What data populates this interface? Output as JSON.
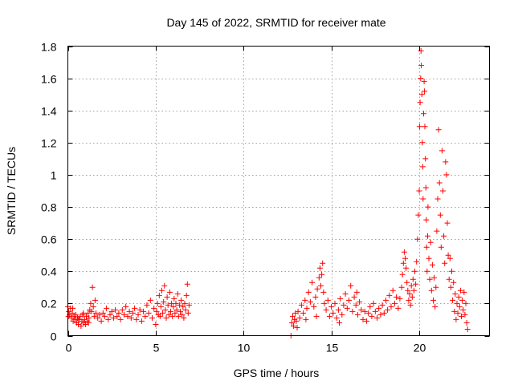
{
  "chart_data": {
    "type": "scatter",
    "title": "Day 145 of 2022, SRMTID for receiver mate",
    "xlabel": "GPS time / hours",
    "ylabel": "SRMTID / TECUs",
    "xlim": [
      0,
      24
    ],
    "ylim": [
      0,
      1.8
    ],
    "xticks": [
      0,
      5,
      10,
      15,
      20
    ],
    "xtick_labels": [
      "0",
      "5",
      "10",
      "15",
      "20"
    ],
    "yticks": [
      0,
      0.2,
      0.4,
      0.6,
      0.8,
      1,
      1.2,
      1.4,
      1.6,
      1.8
    ],
    "ytick_labels": [
      "0",
      "0.2",
      "0.4",
      "0.6",
      "0.8",
      "1",
      "1.2",
      "1.4",
      "1.6",
      "1.8"
    ],
    "grid": true,
    "marker": "+",
    "color": "#ff0000",
    "series": [
      {
        "name": "SRMTID",
        "points": [
          [
            0.0,
            0.18
          ],
          [
            0.05,
            0.15
          ],
          [
            0.1,
            0.13
          ],
          [
            0.15,
            0.17
          ],
          [
            0.2,
            0.11
          ],
          [
            0.25,
            0.14
          ],
          [
            0.3,
            0.09
          ],
          [
            0.35,
            0.12
          ],
          [
            0.4,
            0.1
          ],
          [
            0.45,
            0.13
          ],
          [
            0.5,
            0.08
          ],
          [
            0.55,
            0.11
          ],
          [
            0.6,
            0.07
          ],
          [
            0.65,
            0.1
          ],
          [
            0.7,
            0.12
          ],
          [
            0.75,
            0.06
          ],
          [
            0.8,
            0.09
          ],
          [
            0.85,
            0.13
          ],
          [
            0.9,
            0.08
          ],
          [
            0.95,
            0.1
          ],
          [
            1.0,
            0.07
          ],
          [
            1.05,
            0.12
          ],
          [
            1.1,
            0.09
          ],
          [
            1.15,
            0.14
          ],
          [
            1.2,
            0.11
          ],
          [
            1.25,
            0.16
          ],
          [
            1.3,
            0.2
          ],
          [
            1.35,
            0.15
          ],
          [
            1.4,
            0.3
          ],
          [
            1.45,
            0.18
          ],
          [
            1.5,
            0.12
          ],
          [
            1.55,
            0.22
          ],
          [
            1.6,
            0.14
          ],
          [
            1.7,
            0.11
          ],
          [
            1.8,
            0.13
          ],
          [
            1.9,
            0.09
          ],
          [
            2.0,
            0.14
          ],
          [
            2.1,
            0.12
          ],
          [
            2.2,
            0.17
          ],
          [
            2.3,
            0.1
          ],
          [
            2.4,
            0.13
          ],
          [
            2.5,
            0.15
          ],
          [
            2.6,
            0.11
          ],
          [
            2.7,
            0.16
          ],
          [
            2.8,
            0.12
          ],
          [
            2.9,
            0.14
          ],
          [
            3.0,
            0.1
          ],
          [
            3.1,
            0.16
          ],
          [
            3.2,
            0.13
          ],
          [
            3.3,
            0.18
          ],
          [
            3.4,
            0.12
          ],
          [
            3.5,
            0.15
          ],
          [
            3.6,
            0.11
          ],
          [
            3.7,
            0.14
          ],
          [
            3.8,
            0.17
          ],
          [
            3.9,
            0.1
          ],
          [
            4.0,
            0.13
          ],
          [
            4.1,
            0.16
          ],
          [
            4.2,
            0.09
          ],
          [
            4.3,
            0.15
          ],
          [
            4.4,
            0.12
          ],
          [
            4.5,
            0.19
          ],
          [
            4.6,
            0.14
          ],
          [
            4.7,
            0.22
          ],
          [
            4.8,
            0.11
          ],
          [
            4.9,
            0.17
          ],
          [
            5.0,
            0.07
          ],
          [
            5.05,
            0.15
          ],
          [
            5.1,
            0.2
          ],
          [
            5.15,
            0.13
          ],
          [
            5.2,
            0.25
          ],
          [
            5.25,
            0.12
          ],
          [
            5.3,
            0.18
          ],
          [
            5.35,
            0.28
          ],
          [
            5.4,
            0.14
          ],
          [
            5.45,
            0.21
          ],
          [
            5.5,
            0.31
          ],
          [
            5.55,
            0.16
          ],
          [
            5.6,
            0.11
          ],
          [
            5.65,
            0.24
          ],
          [
            5.7,
            0.19
          ],
          [
            5.75,
            0.13
          ],
          [
            5.8,
            0.27
          ],
          [
            5.85,
            0.15
          ],
          [
            5.9,
            0.2
          ],
          [
            5.95,
            0.12
          ],
          [
            6.0,
            0.18
          ],
          [
            6.05,
            0.23
          ],
          [
            6.1,
            0.14
          ],
          [
            6.15,
            0.2
          ],
          [
            6.2,
            0.16
          ],
          [
            6.25,
            0.26
          ],
          [
            6.3,
            0.12
          ],
          [
            6.35,
            0.19
          ],
          [
            6.4,
            0.15
          ],
          [
            6.45,
            0.22
          ],
          [
            6.5,
            0.13
          ],
          [
            6.55,
            0.18
          ],
          [
            6.6,
            0.11
          ],
          [
            6.65,
            0.2
          ],
          [
            6.7,
            0.16
          ],
          [
            6.75,
            0.25
          ],
          [
            6.8,
            0.32
          ],
          [
            6.85,
            0.14
          ],
          [
            6.9,
            0.19
          ],
          [
            0.03,
            0.12
          ],
          [
            0.28,
            0.17
          ],
          [
            0.58,
            0.1
          ],
          [
            0.88,
            0.14
          ],
          [
            1.18,
            0.08
          ],
          [
            12.7,
            0.0
          ],
          [
            12.75,
            0.08
          ],
          [
            12.8,
            0.12
          ],
          [
            12.85,
            0.06
          ],
          [
            12.9,
            0.1
          ],
          [
            12.95,
            0.14
          ],
          [
            13.0,
            0.09
          ],
          [
            13.1,
            0.15
          ],
          [
            13.2,
            0.11
          ],
          [
            13.3,
            0.19
          ],
          [
            13.4,
            0.14
          ],
          [
            13.5,
            0.22
          ],
          [
            13.6,
            0.17
          ],
          [
            13.7,
            0.27
          ],
          [
            13.8,
            0.21
          ],
          [
            13.9,
            0.33
          ],
          [
            14.0,
            0.18
          ],
          [
            14.1,
            0.24
          ],
          [
            14.2,
            0.29
          ],
          [
            14.3,
            0.36
          ],
          [
            14.35,
            0.42
          ],
          [
            14.4,
            0.31
          ],
          [
            14.45,
            0.38
          ],
          [
            14.5,
            0.45
          ],
          [
            14.55,
            0.27
          ],
          [
            14.6,
            0.2
          ],
          [
            14.7,
            0.16
          ],
          [
            14.8,
            0.22
          ],
          [
            14.9,
            0.12
          ],
          [
            15.0,
            0.18
          ],
          [
            15.1,
            0.14
          ],
          [
            15.2,
            0.2
          ],
          [
            15.3,
            0.11
          ],
          [
            15.4,
            0.16
          ],
          [
            15.5,
            0.23
          ],
          [
            15.6,
            0.13
          ],
          [
            15.7,
            0.19
          ],
          [
            15.8,
            0.26
          ],
          [
            15.9,
            0.17
          ],
          [
            16.0,
            0.22
          ],
          [
            16.1,
            0.31
          ],
          [
            16.2,
            0.15
          ],
          [
            16.3,
            0.24
          ],
          [
            16.4,
            0.19
          ],
          [
            16.5,
            0.13
          ],
          [
            16.6,
            0.21
          ],
          [
            16.7,
            0.16
          ],
          [
            16.8,
            0.1
          ],
          [
            16.9,
            0.15
          ],
          [
            17.0,
            0.09
          ],
          [
            17.1,
            0.14
          ],
          [
            17.2,
            0.18
          ],
          [
            17.3,
            0.12
          ],
          [
            17.4,
            0.2
          ],
          [
            17.5,
            0.15
          ],
          [
            17.6,
            0.11
          ],
          [
            17.7,
            0.17
          ],
          [
            17.8,
            0.13
          ],
          [
            17.9,
            0.19
          ],
          [
            18.0,
            0.14
          ],
          [
            18.1,
            0.22
          ],
          [
            18.2,
            0.16
          ],
          [
            18.3,
            0.25
          ],
          [
            18.4,
            0.18
          ],
          [
            18.5,
            0.28
          ],
          [
            18.6,
            0.2
          ],
          [
            18.7,
            0.24
          ],
          [
            18.8,
            0.17
          ],
          [
            18.9,
            0.23
          ],
          [
            19.0,
            0.3
          ],
          [
            19.05,
            0.38
          ],
          [
            19.1,
            0.45
          ],
          [
            19.15,
            0.52
          ],
          [
            19.2,
            0.48
          ],
          [
            19.25,
            0.42
          ],
          [
            19.3,
            0.33
          ],
          [
            19.35,
            0.28
          ],
          [
            19.4,
            0.22
          ],
          [
            19.45,
            0.26
          ],
          [
            19.5,
            0.19
          ],
          [
            19.55,
            0.31
          ],
          [
            19.6,
            0.24
          ],
          [
            19.65,
            0.35
          ],
          [
            19.7,
            0.28
          ],
          [
            19.75,
            0.4
          ],
          [
            19.8,
            0.32
          ],
          [
            19.85,
            0.46
          ],
          [
            19.9,
            0.6
          ],
          [
            19.95,
            0.75
          ],
          [
            20.0,
            0.9
          ],
          [
            20.02,
            1.3
          ],
          [
            20.05,
            1.45
          ],
          [
            20.08,
            1.6
          ],
          [
            20.1,
            1.77
          ],
          [
            20.12,
            1.68
          ],
          [
            20.15,
            1.5
          ],
          [
            20.18,
            1.2
          ],
          [
            20.2,
            1.05
          ],
          [
            20.22,
            0.85
          ],
          [
            20.25,
            1.38
          ],
          [
            20.28,
            1.58
          ],
          [
            20.3,
            1.52
          ],
          [
            20.32,
            1.3
          ],
          [
            20.35,
            1.1
          ],
          [
            20.38,
            0.92
          ],
          [
            20.4,
            0.72
          ],
          [
            20.42,
            0.55
          ],
          [
            20.45,
            0.4
          ],
          [
            20.48,
            0.62
          ],
          [
            20.5,
            0.8
          ],
          [
            20.55,
            0.48
          ],
          [
            20.6,
            0.35
          ],
          [
            20.65,
            0.58
          ],
          [
            20.7,
            0.28
          ],
          [
            20.75,
            0.44
          ],
          [
            20.8,
            0.22
          ],
          [
            20.85,
            0.36
          ],
          [
            20.9,
            0.18
          ],
          [
            20.95,
            0.3
          ],
          [
            21.0,
            0.65
          ],
          [
            21.05,
            0.85
          ],
          [
            21.1,
            1.28
          ],
          [
            21.15,
            0.95
          ],
          [
            21.2,
            0.75
          ],
          [
            21.25,
            0.55
          ],
          [
            21.3,
            1.15
          ],
          [
            21.35,
            0.9
          ],
          [
            21.4,
            0.62
          ],
          [
            21.45,
            0.45
          ],
          [
            21.5,
            1.08
          ],
          [
            21.55,
            1.0
          ],
          [
            21.6,
            0.7
          ],
          [
            21.65,
            0.5
          ],
          [
            21.7,
            0.35
          ],
          [
            21.75,
            0.48
          ],
          [
            21.8,
            0.3
          ],
          [
            21.85,
            0.4
          ],
          [
            21.9,
            0.22
          ],
          [
            21.95,
            0.33
          ],
          [
            22.0,
            0.15
          ],
          [
            22.05,
            0.26
          ],
          [
            22.1,
            0.1
          ],
          [
            22.15,
            0.2
          ],
          [
            22.2,
            0.14
          ],
          [
            22.25,
            0.24
          ],
          [
            22.3,
            0.18
          ],
          [
            22.35,
            0.28
          ],
          [
            22.4,
            0.12
          ],
          [
            22.45,
            0.22
          ],
          [
            22.5,
            0.16
          ],
          [
            22.55,
            0.27
          ],
          [
            22.6,
            0.13
          ],
          [
            22.65,
            0.2
          ],
          [
            22.7,
            0.08
          ],
          [
            22.75,
            0.04
          ],
          [
            13.05,
            0.05
          ],
          [
            13.55,
            0.1
          ],
          [
            14.15,
            0.12
          ],
          [
            15.45,
            0.08
          ],
          [
            16.45,
            0.27
          ]
        ]
      }
    ]
  }
}
